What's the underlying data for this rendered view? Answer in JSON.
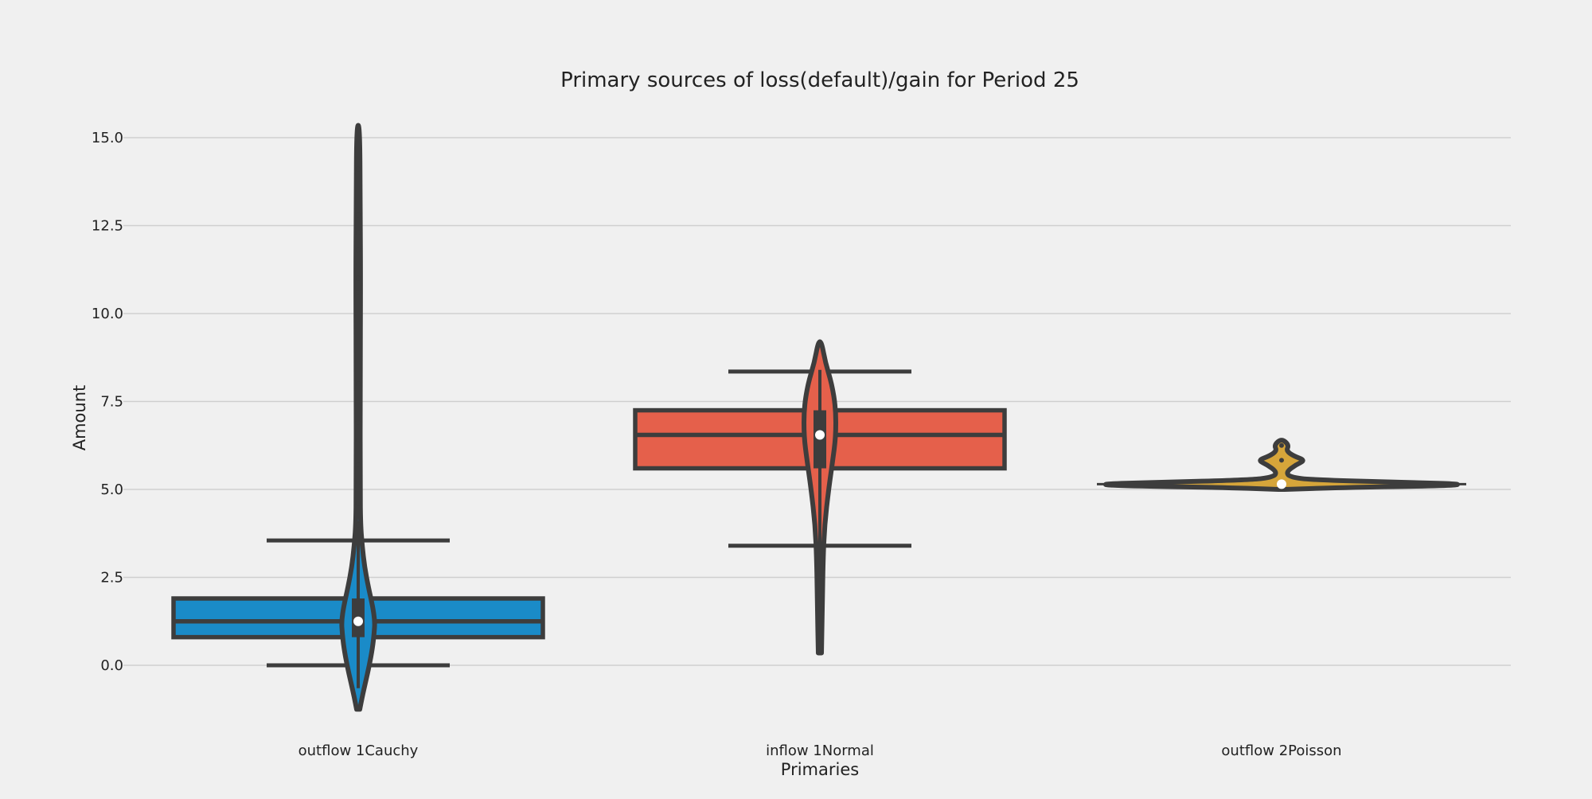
{
  "chart_data": {
    "type": "box_violin",
    "title": "Primary sources of loss(default)/gain for Period 25",
    "xlabel": "Primaries",
    "ylabel": "Amount",
    "ylim": [
      -2.0,
      16.5
    ],
    "yticks": [
      0.0,
      2.5,
      5.0,
      7.5,
      10.0,
      12.5,
      15.0
    ],
    "ytick_labels": [
      "0.0",
      "2.5",
      "5.0",
      "7.5",
      "10.0",
      "12.5",
      "15.0"
    ],
    "grid": "horizontal",
    "categories": [
      "outflow 1Cauchy",
      "inflow 1Normal",
      "outflow 2Poisson"
    ],
    "colors": [
      "#1a8bc8",
      "#e5604b",
      "#d6a53a"
    ],
    "box": [
      {
        "whisker_low": 0.0,
        "q1": 0.8,
        "median": 1.25,
        "q3": 1.9,
        "whisker_high": 3.55
      },
      {
        "whisker_low": 3.4,
        "q1": 5.6,
        "median": 6.55,
        "q3": 7.25,
        "whisker_high": 8.35
      },
      {
        "whisker_low": 5.15,
        "q1": 5.15,
        "median": 5.15,
        "q3": 5.15,
        "whisker_high": 5.15
      }
    ],
    "violin": [
      {
        "min": -1.25,
        "max": 15.35,
        "median": 1.25,
        "q1": 0.8,
        "q3": 1.9,
        "outliers": [
          4.0,
          4.6,
          5.2,
          5.7,
          6.4,
          6.9,
          8.0,
          10.6,
          11.0,
          11.4,
          11.8,
          12.3,
          12.8,
          14.1
        ]
      },
      {
        "min": 0.35,
        "max": 9.2,
        "median": 6.55,
        "q1": 5.6,
        "q3": 7.25,
        "outliers": []
      },
      {
        "min": 5.0,
        "max": 6.4,
        "median": 5.15,
        "q1": 5.1,
        "q3": 5.2,
        "outliers": [
          5.83,
          6.25
        ]
      }
    ]
  }
}
